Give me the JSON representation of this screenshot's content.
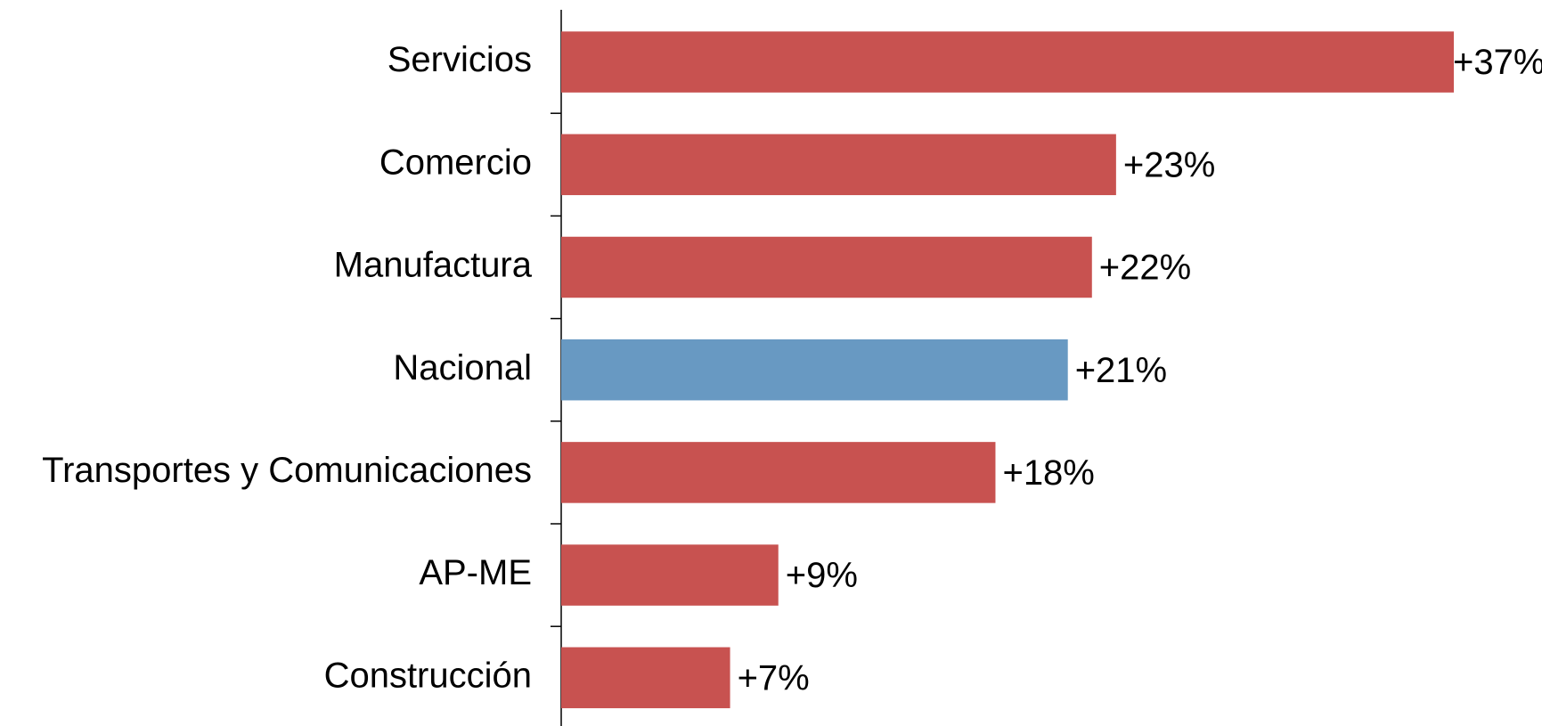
{
  "chart_data": {
    "type": "hbar",
    "categories": [
      "Servicios",
      "Comercio",
      "Manufactura",
      "Nacional",
      "Transportes y Comunicaciones",
      "AP-ME",
      "Construcción"
    ],
    "values": [
      37,
      23,
      22,
      21,
      18,
      9,
      7
    ],
    "value_labels": [
      "+37%",
      "+23%",
      "+22%",
      "+21%",
      "+18%",
      "+9%",
      "+7%"
    ],
    "colors": [
      "#c85250",
      "#c85250",
      "#c85250",
      "#6899c2",
      "#c85250",
      "#c85250",
      "#c85250"
    ]
  }
}
